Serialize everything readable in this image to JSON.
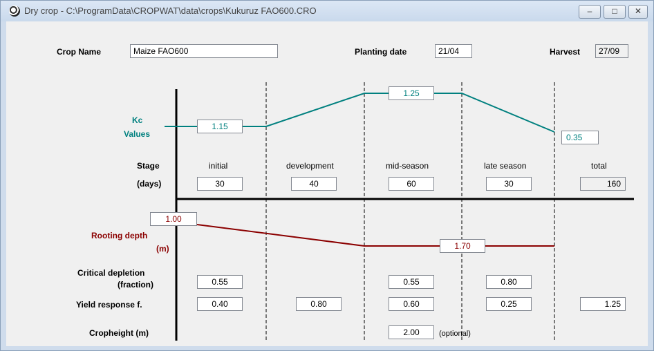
{
  "window": {
    "title": "Dry crop - C:\\ProgramData\\CROPWAT\\data\\crops\\Kukuruz FAO600.CRO",
    "minimize_glyph": "–",
    "maximize_glyph": "□",
    "close_glyph": "✕"
  },
  "header": {
    "crop_name_label": "Crop Name",
    "crop_name": "Maize  FAO600",
    "planting_date_label": "Planting date",
    "planting_date": "21/04",
    "harvest_label": "Harvest",
    "harvest": "27/09"
  },
  "kc": {
    "label_line1": "Kc",
    "label_line2": "Values",
    "initial": "1.15",
    "mid": "1.25",
    "end": "0.35"
  },
  "stage": {
    "label": "Stage",
    "days_label": "(days)",
    "names": [
      "initial",
      "development",
      "mid-season",
      "late season",
      "total"
    ],
    "days": [
      "30",
      "40",
      "60",
      "30",
      "160"
    ]
  },
  "rooting": {
    "label_line1": "Rooting depth",
    "label_line2": "(m)",
    "initial": "1.00",
    "max": "1.70"
  },
  "critical_depletion": {
    "label_line1": "Critical depletion",
    "label_line2": "(fraction)",
    "initial": "0.55",
    "mid": "0.55",
    "late": "0.80"
  },
  "yield_response": {
    "label": "Yield response f.",
    "values": [
      "0.40",
      "0.80",
      "0.60",
      "0.25",
      "1.25"
    ]
  },
  "cropheight": {
    "label": "Cropheight (m)",
    "value": "2.00",
    "optional_label": "(optional)"
  },
  "colors": {
    "kc": "#00807f",
    "rooting": "#8b0000"
  }
}
